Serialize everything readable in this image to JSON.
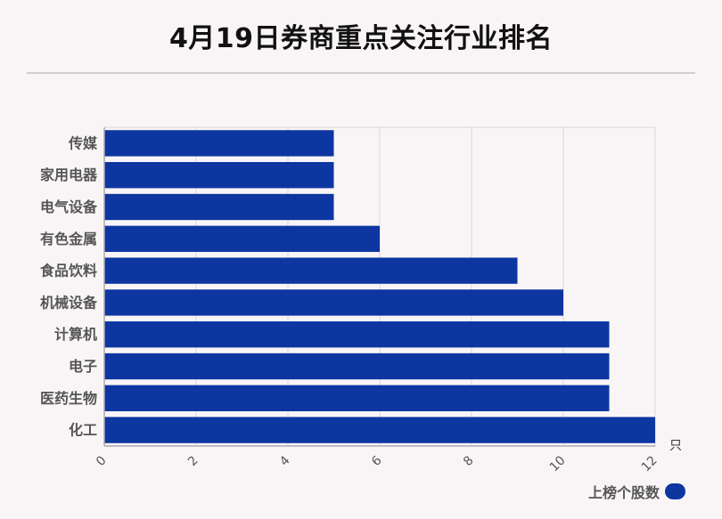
{
  "title": "4月19日券商重点关注行业排名",
  "colors": {
    "bar": "#0d36a0",
    "grid": "#d6d6d6",
    "axis": "#aaaaaa"
  },
  "chart_data": {
    "type": "bar",
    "orientation": "horizontal",
    "categories": [
      "传媒",
      "家用电器",
      "电气设备",
      "有色金属",
      "食品饮料",
      "机械设备",
      "计算机",
      "电子",
      "医药生物",
      "化工"
    ],
    "series": [
      {
        "name": "上榜个股数",
        "values": [
          5,
          5,
          5,
          6,
          9,
          10,
          11,
          11,
          11,
          12
        ]
      }
    ],
    "xlim": [
      0,
      12
    ],
    "xticks": [
      "0",
      "2",
      "4",
      "6",
      "8",
      "10",
      "12"
    ],
    "x_unit": "只",
    "grid": true,
    "legend": "bottom-right"
  }
}
